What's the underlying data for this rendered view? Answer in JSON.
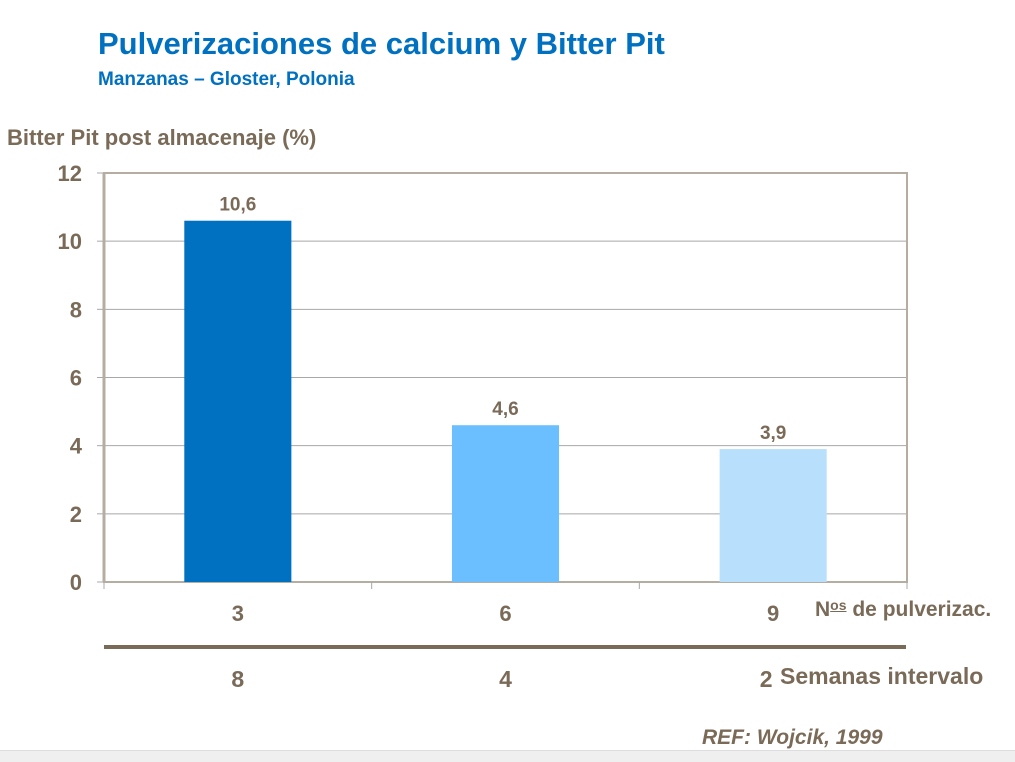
{
  "title": "Pulverizaciones de calcium y Bitter Pit",
  "subtitle": "Manzanas – Gloster, Polonia",
  "reference": "REF: Wojcik, 1999",
  "chart_data": {
    "type": "bar",
    "ylabel": "Bitter Pit post almacenaje (%)",
    "ylim": [
      0,
      12
    ],
    "yticks": [
      "0",
      "2",
      "4",
      "6",
      "8",
      "10",
      "12"
    ],
    "grid": true,
    "categories": [
      "3",
      "6",
      "9"
    ],
    "values": [
      10.6,
      4.6,
      3.9
    ],
    "data_labels": [
      "10,6",
      "4,6",
      "3,9"
    ],
    "bar_colors": [
      "#0070c0",
      "#6bbfff",
      "#b8e0fc"
    ],
    "xlabel_prefix": "N",
    "xlabel_sup": "os",
    "xlabel": "de pulverizac.",
    "secondary_categories": [
      "8",
      "4",
      "2"
    ],
    "secondary_label": "Semanas intervalo"
  }
}
